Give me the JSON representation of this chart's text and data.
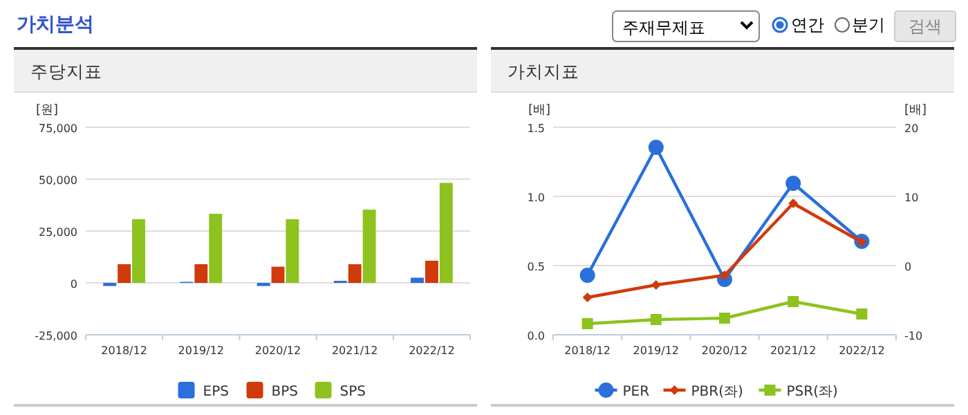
{
  "chart_data": [
    {
      "type": "bar",
      "title": "주당지표",
      "annotations": [
        "가치분석"
      ],
      "ylabel": "[원]",
      "categories": [
        "2018/12",
        "2019/12",
        "2020/12",
        "2021/12",
        "2022/12"
      ],
      "series": [
        {
          "name": "EPS",
          "color": "#2a6fdb",
          "values": [
            -1500,
            500,
            -1500,
            1000,
            2500
          ]
        },
        {
          "name": "BPS",
          "color": "#d13a0a",
          "values": [
            9000,
            9000,
            7800,
            9000,
            10700
          ]
        },
        {
          "name": "SPS",
          "color": "#8dc21f",
          "values": [
            30700,
            33300,
            30700,
            35300,
            48200
          ]
        }
      ],
      "ylim": [
        -25000,
        75000
      ],
      "yticks": [
        {
          "value": -25000,
          "label": "-25,000"
        },
        {
          "value": 0,
          "label": "0"
        },
        {
          "value": 25000,
          "label": "25,000"
        },
        {
          "value": 50000,
          "label": "50,000"
        },
        {
          "value": 75000,
          "label": "75,000"
        }
      ],
      "grid": "y",
      "legend": "bottom"
    },
    {
      "type": "line",
      "title": "가치지표",
      "annotations": [
        "주재무제표",
        "연간",
        "분기",
        "검색"
      ],
      "ylabel": "[배]",
      "y2label": "[배]",
      "categories": [
        "2018/12",
        "2019/12",
        "2020/12",
        "2021/12",
        "2022/12"
      ],
      "series": [
        {
          "name": "PER",
          "color": "#2a6fdb",
          "axis": "y2",
          "marker": "circle",
          "values": [
            -1.4,
            17.1,
            -2.0,
            11.9,
            3.5
          ]
        },
        {
          "name": "PBR(좌)",
          "color": "#d13a0a",
          "marker": "diamond",
          "values": [
            0.27,
            0.36,
            0.43,
            0.95,
            0.67
          ]
        },
        {
          "name": "PSR(좌)",
          "color": "#8dc21f",
          "marker": "square",
          "values": [
            0.08,
            0.11,
            0.12,
            0.24,
            0.15
          ]
        }
      ],
      "ylim": [
        0,
        1.5
      ],
      "yticks": [
        {
          "value": 0,
          "label": "0.0"
        },
        {
          "value": 0.5,
          "label": "0.5"
        },
        {
          "value": 1,
          "label": "1.0"
        },
        {
          "value": 1.5,
          "label": "1.5"
        }
      ],
      "y2lim": [
        -10,
        20
      ],
      "y2ticks": [
        -10,
        0,
        10,
        20
      ],
      "grid": "y",
      "legend": "bottom"
    }
  ]
}
